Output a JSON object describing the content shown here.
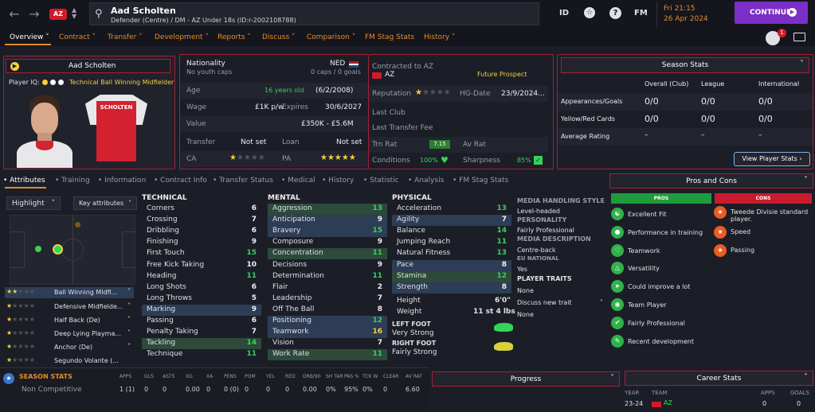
{
  "topbar": {
    "name": "Aad Scholten",
    "subtitle": "Defender (Centre) / DM - AZ Under 18s (ID:r-2002108788)",
    "id": "ID",
    "fm": "FM",
    "day_time": "Fri 21:15",
    "date": "26 Apr 2024",
    "continue": "CONTINUE",
    "club_abbr": "AZ"
  },
  "tabs": [
    "Overview",
    "Contract",
    "Transfer",
    "Development",
    "Reports",
    "Discuss",
    "Comparison",
    "FM Stag Stats",
    "History"
  ],
  "notif_count": "1",
  "card": {
    "name": "Aad Scholten",
    "iq_label": "Player IQ:",
    "role_prefix": "Technical",
    "role": "Ball Winning Midfielder",
    "shirt": "SCHOLTEN"
  },
  "info": {
    "nationality_label": "Nationality",
    "nationality_val": "NED",
    "youth_caps": "No youth caps",
    "caps_goals": "0 caps / 0 goals",
    "age_label": "Age",
    "age_val": "16 years old",
    "dob": "(6/2/2008)",
    "wage_label": "Wage",
    "wage_val": "£1K p/w",
    "expires_label": "Expires",
    "expires_val": "30/6/2027",
    "value_label": "Value",
    "value_val": "£350K - £5.6M",
    "transfer_label": "Transfer",
    "transfer_val": "Not set",
    "loan_label": "Loan",
    "loan_val": "Not set",
    "ca_label": "CA",
    "pa_label": "PA"
  },
  "contract": {
    "contracted_label": "Contracted to AZ",
    "club": "AZ",
    "status": "Future Prospect",
    "rep_label": "Reputation",
    "hg_label": "HG-Date",
    "hg_val": "23/9/2024...",
    "last_club": "Last Club",
    "last_fee": "Last Transfer Fee",
    "trn_label": "Trn Rat",
    "trn_val": "7.15",
    "av_label": "Av Rat",
    "cond_label": "Conditions",
    "cond_val": "100%",
    "sharp_label": "Sharpness",
    "sharp_val": "85%"
  },
  "season": {
    "title": "Season Stats",
    "cols": [
      "Overall (Club)",
      "League",
      "International"
    ],
    "rows": [
      {
        "label": "Appearances/Goals",
        "vals": [
          "0/0",
          "0/0",
          "0/0"
        ]
      },
      {
        "label": "Yellow/Red Cards",
        "vals": [
          "0/0",
          "0/0",
          "0/0"
        ]
      },
      {
        "label": "Average Rating",
        "vals": [
          "–",
          "–",
          "–"
        ]
      }
    ],
    "button": "View Player Stats"
  },
  "subtabs": [
    "Attributes",
    "Training",
    "Information",
    "Contract Info",
    "Transfer Status",
    "Medical",
    "History",
    "Statistic",
    "Analysis",
    "FM Stag Stats"
  ],
  "left": {
    "highlight": "Highlight",
    "key_attr": "Key attributes",
    "roles": [
      "Ball Winning Midfi...",
      "Defensive Midfielde...",
      "Half Back (De)",
      "Deep Lying Playma...",
      "Anchor (De)",
      "Segundo Volante (..."
    ]
  },
  "technical": {
    "title": "TECHNICAL",
    "items": [
      [
        "Corners",
        "6"
      ],
      [
        "Crossing",
        "7"
      ],
      [
        "Dribbling",
        "6"
      ],
      [
        "Finishing",
        "9"
      ],
      [
        "First Touch",
        "15"
      ],
      [
        "Free Kick Taking",
        "10"
      ],
      [
        "Heading",
        "11"
      ],
      [
        "Long Shots",
        "6"
      ],
      [
        "Long Throws",
        "5"
      ],
      [
        "Marking",
        "9"
      ],
      [
        "Passing",
        "6"
      ],
      [
        "Penalty Taking",
        "7"
      ],
      [
        "Tackling",
        "14"
      ],
      [
        "Technique",
        "11"
      ]
    ]
  },
  "mental": {
    "title": "MENTAL",
    "items": [
      [
        "Aggression",
        "13"
      ],
      [
        "Anticipation",
        "9"
      ],
      [
        "Bravery",
        "15"
      ],
      [
        "Composure",
        "9"
      ],
      [
        "Concentration",
        "11"
      ],
      [
        "Decisions",
        "9"
      ],
      [
        "Determination",
        "11"
      ],
      [
        "Flair",
        "2"
      ],
      [
        "Leadership",
        "7"
      ],
      [
        "Off The Ball",
        "8"
      ],
      [
        "Positioning",
        "12"
      ],
      [
        "Teamwork",
        "16"
      ],
      [
        "Vision",
        "7"
      ],
      [
        "Work Rate",
        "11"
      ]
    ]
  },
  "physical": {
    "title": "PHYSICAL",
    "items": [
      [
        "Acceleration",
        "13"
      ],
      [
        "Agility",
        "7"
      ],
      [
        "Balance",
        "14"
      ],
      [
        "Jumping Reach",
        "11"
      ],
      [
        "Natural Fitness",
        "13"
      ],
      [
        "Pace",
        "8"
      ],
      [
        "Stamina",
        "12"
      ],
      [
        "Strength",
        "8"
      ]
    ],
    "height_label": "Height",
    "height_val": "6'0\"",
    "weight_label": "Weight",
    "weight_val": "11 st 4 lbs",
    "left_foot_label": "LEFT FOOT",
    "left_foot_val": "Very Strong",
    "right_foot_label": "RIGHT FOOT",
    "right_foot_val": "Fairly Strong"
  },
  "media": {
    "mh_title": "MEDIA HANDLING STYLE",
    "mh_val": "Level-headed",
    "pers_title": "PERSONALITY",
    "pers_val": "Fairly Professional",
    "md_title": "MEDIA DESCRIPTION",
    "md_val": "Centre-back",
    "eu_title": "EU NATIONAL",
    "eu_val": "Yes",
    "traits_title": "PLAYER TRAITS",
    "traits_val": "None",
    "discuss": "Discuss new trait",
    "discuss_val": "None"
  },
  "proscons": {
    "title": "Pros and Cons",
    "pros_label": "PROS",
    "cons_label": "CONS",
    "pros": [
      "Excellent Fit",
      "Performance in training",
      "Teamwork",
      "Versatility",
      "Could improve a lot",
      "Team Player",
      "Fairly Professional",
      "Recent development"
    ],
    "cons": [
      "Tweede Divisie standard player.",
      "Speed",
      "Passing"
    ]
  },
  "bottom": {
    "title": "SEASON STATS",
    "cols": [
      "APPS",
      "GLS",
      "ASTS",
      "XG",
      "XA",
      "PENS",
      "POM",
      "YEL",
      "RED",
      "DRB/90",
      "SH TAR",
      "PAS %",
      "TCK W",
      "CLEAR",
      "AV RAT"
    ],
    "row_label": "Non Competitive",
    "row_vals": [
      "1 (1)",
      "0",
      "0",
      "0.00",
      "0",
      "0 (0)",
      "0",
      "0",
      "0",
      "0.00",
      "0%",
      "95%",
      "0%",
      "0",
      "6.60"
    ],
    "progress": "Progress",
    "career": "Career Stats",
    "career_cols": [
      "YEAR",
      "TEAM",
      "APPS",
      "GOALS"
    ],
    "career_row": [
      "23-24",
      "AZ",
      "0",
      "0"
    ]
  }
}
